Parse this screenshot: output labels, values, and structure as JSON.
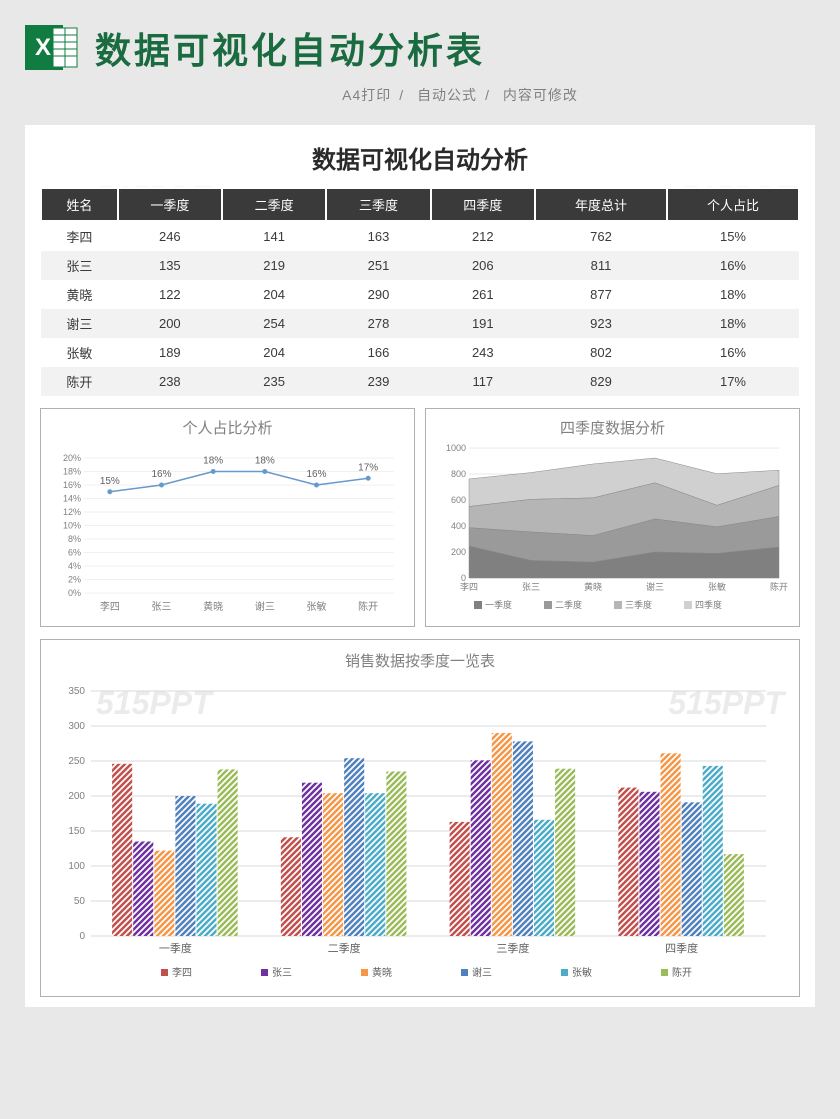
{
  "header": {
    "title": "数据可视化自动分析表",
    "subtitle_parts": [
      "A4打印",
      "自动公式",
      "内容可修改"
    ]
  },
  "panel": {
    "title": "数据可视化自动分析",
    "table": {
      "columns": [
        "姓名",
        "一季度",
        "二季度",
        "三季度",
        "四季度",
        "年度总计",
        "个人占比"
      ],
      "rows": [
        [
          "李四",
          "246",
          "141",
          "163",
          "212",
          "762",
          "15%"
        ],
        [
          "张三",
          "135",
          "219",
          "251",
          "206",
          "811",
          "16%"
        ],
        [
          "黄晓",
          "122",
          "204",
          "290",
          "261",
          "877",
          "18%"
        ],
        [
          "谢三",
          "200",
          "254",
          "278",
          "191",
          "923",
          "18%"
        ],
        [
          "张敏",
          "189",
          "204",
          "166",
          "243",
          "802",
          "16%"
        ],
        [
          "陈开",
          "238",
          "235",
          "239",
          "117",
          "829",
          "17%"
        ]
      ],
      "header_bg": "#3a3a3a",
      "header_color": "#ffffff",
      "row_alt_bg": "#f2f2f2"
    },
    "line_chart": {
      "title": "个人占比分析",
      "categories": [
        "李四",
        "张三",
        "黄晓",
        "谢三",
        "张敏",
        "陈开"
      ],
      "values": [
        15,
        16,
        18,
        18,
        16,
        17
      ],
      "labels": [
        "15%",
        "16%",
        "18%",
        "18%",
        "16%",
        "17%"
      ],
      "line_color": "#6699cc",
      "ylim": [
        0,
        20
      ],
      "ytick_step": 2,
      "yticks": [
        "0%",
        "2%",
        "4%",
        "6%",
        "8%",
        "10%",
        "12%",
        "14%",
        "16%",
        "18%",
        "20%"
      ],
      "grid_color": "#e0e0e0"
    },
    "area_chart": {
      "title": "四季度数据分析",
      "categories": [
        "李四",
        "张三",
        "黄晓",
        "谢三",
        "张敏",
        "陈开"
      ],
      "series": [
        {
          "name": "一季度",
          "values": [
            246,
            135,
            122,
            200,
            189,
            238
          ],
          "color": "#808080"
        },
        {
          "name": "二季度",
          "values": [
            141,
            219,
            204,
            254,
            204,
            235
          ],
          "color": "#9a9a9a"
        },
        {
          "name": "三季度",
          "values": [
            163,
            251,
            290,
            278,
            166,
            239
          ],
          "color": "#b5b5b5"
        },
        {
          "name": "四季度",
          "values": [
            212,
            206,
            261,
            191,
            243,
            117
          ],
          "color": "#d0d0d0"
        }
      ],
      "ylim": [
        0,
        1000
      ],
      "ytick_step": 200,
      "grid_color": "#d0d0d0"
    },
    "bar_chart": {
      "title": "销售数据按季度一览表",
      "categories": [
        "一季度",
        "二季度",
        "三季度",
        "四季度"
      ],
      "series": [
        {
          "name": "李四",
          "color": "#c0504d",
          "values": [
            246,
            141,
            163,
            212
          ]
        },
        {
          "name": "张三",
          "color": "#7030a0",
          "values": [
            135,
            219,
            251,
            206
          ]
        },
        {
          "name": "黄晓",
          "color": "#f79646",
          "values": [
            122,
            204,
            290,
            261
          ]
        },
        {
          "name": "谢三",
          "color": "#4f81bd",
          "values": [
            200,
            254,
            278,
            191
          ]
        },
        {
          "name": "张敏",
          "color": "#4bacc6",
          "values": [
            189,
            204,
            166,
            243
          ]
        },
        {
          "name": "陈开",
          "color": "#9bbb59",
          "values": [
            238,
            235,
            239,
            117
          ]
        }
      ],
      "ylim": [
        0,
        350
      ],
      "ytick_step": 50,
      "grid_color": "#d8d8d8"
    },
    "watermark_text": "515PPT"
  }
}
